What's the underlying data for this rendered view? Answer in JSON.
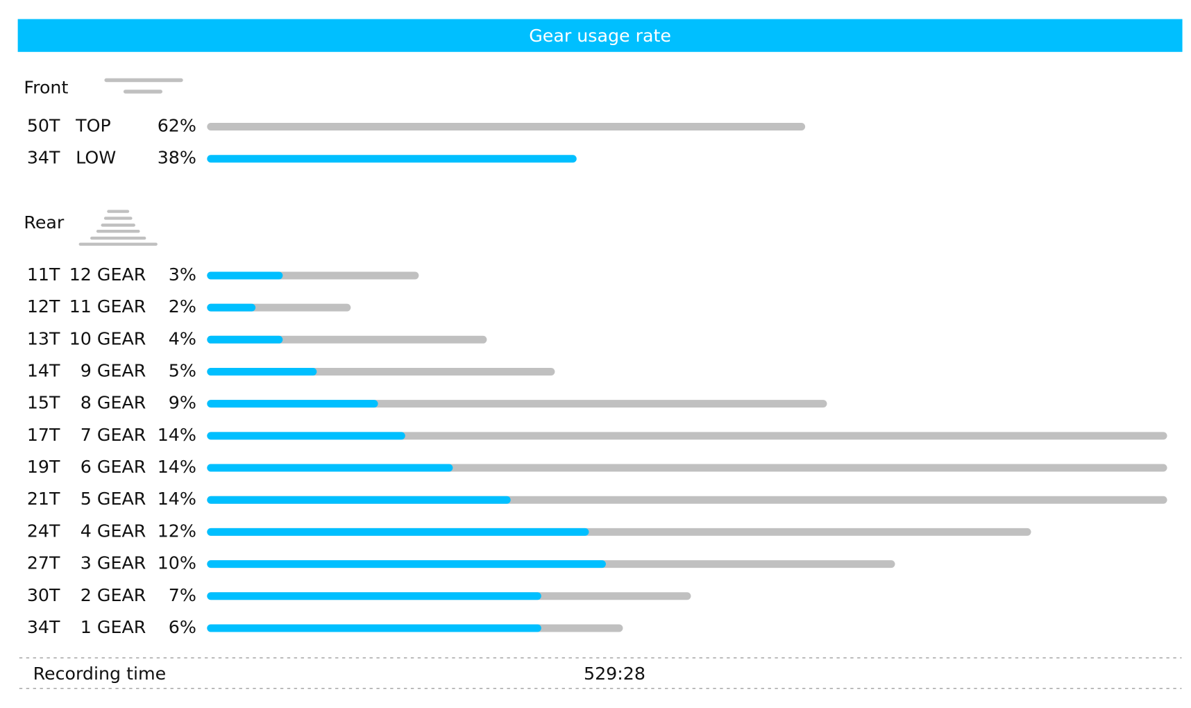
{
  "header": {
    "title": "Gear usage rate"
  },
  "front": {
    "label": "Front",
    "xlim": [
      0,
      100
    ],
    "colors": {
      "bar": "#c0c0c0",
      "highlight": "#00bfff"
    },
    "rows": [
      {
        "teeth": "50T",
        "gear": "TOP",
        "value": 62,
        "value_label": "62%",
        "highlight": false
      },
      {
        "teeth": "34T",
        "gear": "LOW",
        "value": 38,
        "value_label": "38%",
        "highlight": true
      }
    ]
  },
  "rear": {
    "label": "Rear",
    "xlim": [
      0,
      14
    ],
    "colors": {
      "bar": "#c0c0c0",
      "low_share": "#00bfff"
    },
    "rows": [
      {
        "teeth": "11T",
        "gear": "12 GEAR",
        "value": 3,
        "value_label": "3%",
        "low_share": 1.0
      },
      {
        "teeth": "12T",
        "gear": "11 GEAR",
        "value": 2,
        "value_label": "2%",
        "low_share": 0.6
      },
      {
        "teeth": "13T",
        "gear": "10 GEAR",
        "value": 4,
        "value_label": "4%",
        "low_share": 1.0
      },
      {
        "teeth": "14T",
        "gear": "9 GEAR",
        "value": 5,
        "value_label": "5%",
        "low_share": 1.5
      },
      {
        "teeth": "15T",
        "gear": "8 GEAR",
        "value": 9,
        "value_label": "9%",
        "low_share": 2.4
      },
      {
        "teeth": "17T",
        "gear": "7 GEAR",
        "value": 14,
        "value_label": "14%",
        "low_share": 2.8
      },
      {
        "teeth": "19T",
        "gear": "6 GEAR",
        "value": 14,
        "value_label": "14%",
        "low_share": 3.5
      },
      {
        "teeth": "21T",
        "gear": "5 GEAR",
        "value": 14,
        "value_label": "14%",
        "low_share": 4.35
      },
      {
        "teeth": "24T",
        "gear": "4 GEAR",
        "value": 12,
        "value_label": "12%",
        "low_share": 5.5
      },
      {
        "teeth": "27T",
        "gear": "3 GEAR",
        "value": 10,
        "value_label": "10%",
        "low_share": 5.75
      },
      {
        "teeth": "30T",
        "gear": "2 GEAR",
        "value": 7,
        "value_label": "7%",
        "low_share": 4.8
      },
      {
        "teeth": "34T",
        "gear": "1 GEAR",
        "value": 6,
        "value_label": "6%",
        "low_share": 4.8
      }
    ]
  },
  "footer": {
    "label": "Recording time",
    "value": "529:28"
  }
}
